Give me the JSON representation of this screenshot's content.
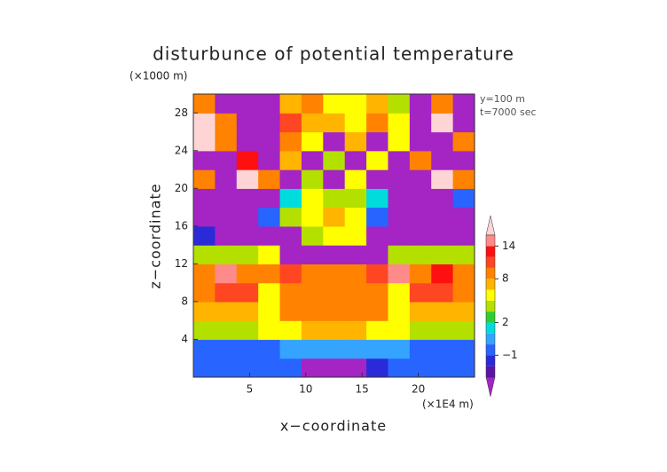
{
  "chart_data": {
    "type": "heatmap",
    "title": "disturbunce of potential temperature",
    "y_unit": "(×1000 m)",
    "x_unit": "(×1E4 m)",
    "annotations": [
      "y=100 m",
      "t=7000 sec"
    ],
    "xlabel": "x−coordinate",
    "ylabel": "z−coordinate",
    "xlim": [
      0,
      25
    ],
    "ylim": [
      0,
      30
    ],
    "xticks": [
      5,
      10,
      15,
      20
    ],
    "yticks": [
      4,
      8,
      12,
      16,
      20,
      24,
      28
    ],
    "z": [
      [
        -0.5,
        -0.5,
        -0.5,
        -0.5,
        -0.5,
        -4,
        -4,
        -4,
        -1.5,
        -0.5,
        -0.5,
        -0.5,
        -0.5
      ],
      [
        -0.5,
        -0.5,
        -0.5,
        -0.5,
        0.5,
        0.5,
        0.5,
        0.5,
        0.5,
        0,
        -0.5,
        -0.5,
        -0.5
      ],
      [
        3,
        3,
        3,
        5,
        5,
        7,
        7,
        7,
        5,
        4,
        3,
        3,
        3
      ],
      [
        7,
        7,
        7,
        5,
        9,
        9,
        9,
        9,
        9,
        5,
        7,
        7,
        7
      ],
      [
        9,
        11,
        11,
        4,
        9,
        9,
        9,
        9,
        9,
        5,
        11,
        11,
        9
      ],
      [
        9,
        15,
        9,
        9,
        11,
        9,
        9,
        9,
        11,
        15,
        9,
        13,
        9
      ],
      [
        3,
        3,
        3,
        5,
        -4,
        -4,
        -4,
        -4,
        -4,
        3,
        3,
        3,
        3
      ],
      [
        -2,
        -4,
        -4,
        -4,
        -4,
        3,
        5,
        5,
        -4,
        -4,
        -4,
        -4,
        -4
      ],
      [
        -4,
        -4,
        -4,
        -1,
        3,
        5,
        7,
        5,
        -1,
        -4,
        -4,
        -4,
        -4
      ],
      [
        -4,
        -4,
        -4,
        -4,
        1,
        5,
        3,
        3,
        1,
        -4,
        -4,
        -4,
        -1
      ],
      [
        8,
        -4,
        16,
        8,
        -4,
        3,
        -4,
        5,
        -4,
        -4,
        -4,
        17,
        8
      ],
      [
        -4,
        -4,
        12,
        -4,
        6,
        -4,
        3,
        -4,
        4,
        -4,
        9,
        -4,
        -4
      ],
      [
        16,
        8,
        -4,
        -4,
        8,
        5,
        -4,
        7,
        -4,
        5,
        -4,
        -4,
        8
      ],
      [
        17,
        8,
        -4,
        -4,
        10,
        6,
        7,
        5,
        9,
        4,
        -4,
        16,
        -4
      ],
      [
        9,
        -4,
        -4,
        -4,
        6,
        8,
        4,
        5,
        7,
        3,
        -4,
        9,
        -4
      ]
    ],
    "colorbar": {
      "levels": [
        -3,
        -2,
        -1,
        0,
        1,
        2,
        3,
        4,
        6,
        8,
        10,
        12,
        14,
        16
      ],
      "colors": [
        "#a424c4",
        "#5a14a8",
        "#2a2ad8",
        "#2864ff",
        "#34a4ff",
        "#00dcdc",
        "#30cc30",
        "#b4e000",
        "#ffff00",
        "#ffb400",
        "#ff8200",
        "#ff4622",
        "#ff1010",
        "#ff8a8a",
        "#ffd4d4"
      ],
      "ticks": [
        {
          "value": -1,
          "label": "−1"
        },
        2,
        8,
        14
      ]
    }
  }
}
